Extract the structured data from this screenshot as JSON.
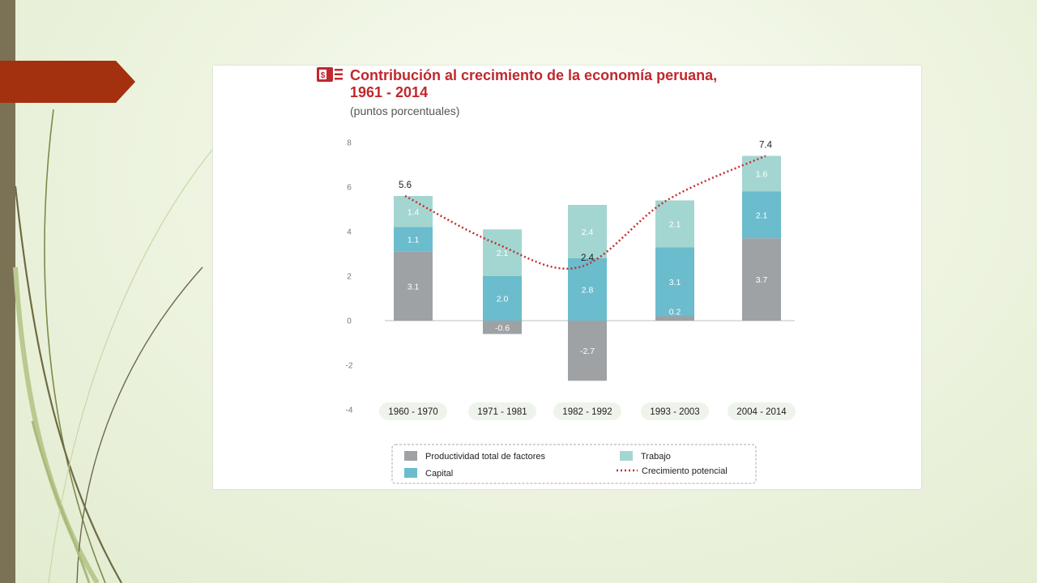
{
  "colors": {
    "productividad": "#9fa2a4",
    "capital": "#6bbccc",
    "trabajo": "#a4d6d1",
    "crecimiento": "#c62d2d",
    "title": "#c0282d",
    "ribbon": "#a3300f",
    "slide_bar": "#7b7155",
    "pill": "#eef4ec"
  },
  "title_icon": "money-document-icon",
  "chart_data": {
    "type": "bar",
    "stacked": true,
    "title_line1": "Contribución al crecimiento de la economía peruana,",
    "title_line2": "1961 - 2014",
    "subtitle": "(puntos porcentuales)",
    "categories": [
      "1960 - 1970",
      "1971 - 1981",
      "1982 - 1992",
      "1993 - 2003",
      "2004 - 2014"
    ],
    "y_ticks": [
      "8",
      "6",
      "4",
      "2",
      "0",
      "-2",
      "-4"
    ],
    "ylim": [
      -4,
      8
    ],
    "series": [
      {
        "key": "productividad",
        "name": "Productividad total de factores",
        "values": [
          3.1,
          -0.6,
          -2.7,
          0.2,
          3.7
        ],
        "labels": [
          "3.1",
          "-0.6",
          "-2.7",
          "0.2",
          "3.7"
        ]
      },
      {
        "key": "capital",
        "name": "Capital",
        "values": [
          1.1,
          2.0,
          2.8,
          3.1,
          2.1
        ],
        "labels": [
          "1.1",
          "2.0",
          "2.8",
          "3.1",
          "2.1"
        ]
      },
      {
        "key": "trabajo",
        "name": "Trabajo",
        "values": [
          1.4,
          2.1,
          2.4,
          2.1,
          1.6
        ],
        "labels": [
          "1.4",
          "2.1",
          "2.4",
          "2.1",
          "1.6"
        ]
      }
    ],
    "line": {
      "name": "Crecimiento potencial",
      "values": [
        5.6,
        3.5,
        2.4,
        5.4,
        7.4
      ],
      "labels": [
        "5.6",
        "",
        "2.4",
        "",
        "7.4"
      ]
    },
    "legend_position": "bottom"
  }
}
